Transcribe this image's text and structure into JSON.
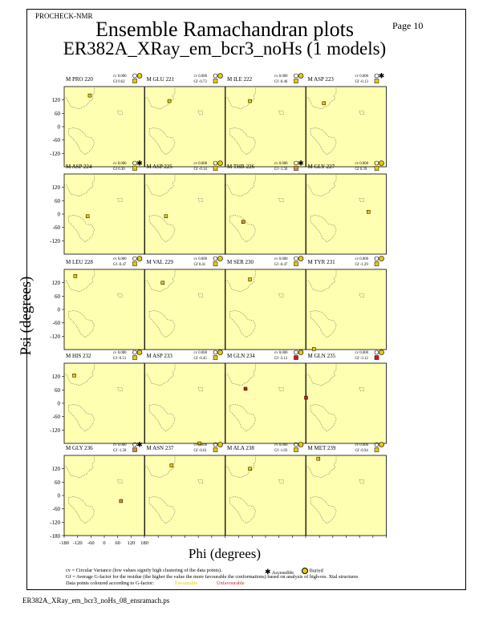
{
  "header": {
    "program": "PROCHECK-NMR",
    "page": "Page 10",
    "title": "Ensemble Ramachandran plots",
    "subtitle": "ER382A_XRay_em_bcr3_noHs (1 models)"
  },
  "axes": {
    "xlabel": "Phi (degrees)",
    "ylabel": "Psi (degrees)",
    "xticks": [
      "-180",
      "-120",
      "-60",
      "0",
      "60",
      "120",
      "180"
    ],
    "yticks": [
      "120",
      "60",
      "0",
      "-60",
      "-120"
    ],
    "ytick_bottom": "-180"
  },
  "chart_data": {
    "type": "scatter",
    "xlabel": "Phi (degrees)",
    "ylabel": "Psi (degrees)",
    "xlim": [
      -180,
      180
    ],
    "ylim": [
      -180,
      180
    ],
    "panels": [
      {
        "label": "M PRO 220",
        "cv": "cv 0.000",
        "gf": "Gf 0.62",
        "marker": "buried",
        "quality": "favourable",
        "phi": -65,
        "psi": 140
      },
      {
        "label": "M GLU 221",
        "cv": "cv 0.000",
        "gf": "Gf -0.73",
        "marker": "buried",
        "quality": "favourable",
        "phi": -70,
        "psi": 115
      },
      {
        "label": "M ILE 222",
        "cv": "cv 0.000",
        "gf": "Gf -0.46",
        "marker": "buried",
        "quality": "favourable",
        "phi": -70,
        "psi": 115
      },
      {
        "label": "M ASP 223",
        "cv": "cv 0.000",
        "gf": "Gf -0.13",
        "marker": "accessible",
        "quality": "favourable",
        "phi": -100,
        "psi": 105
      },
      {
        "label": "M ASP 224",
        "cv": "cv 0.000",
        "gf": "Gf 0.30",
        "marker": "accessible",
        "quality": "favourable",
        "phi": -75,
        "psi": -10
      },
      {
        "label": "M ASP 225",
        "cv": "cv 0.000",
        "gf": "Gf -0.14",
        "marker": "buried",
        "quality": "favourable",
        "phi": -85,
        "psi": -10
      },
      {
        "label": "M THR 226",
        "cv": "cv 0.000",
        "gf": "Gf -1.56",
        "marker": "accessible",
        "quality": "unfavourable",
        "phi": -100,
        "psi": -35
      },
      {
        "label": "M GLY 227",
        "cv": "cv 0.000",
        "gf": "Gf 0.39",
        "marker": "buried",
        "quality": "favourable",
        "phi": 100,
        "psi": 10
      },
      {
        "label": "M LEU 228",
        "cv": "cv 0.000",
        "gf": "Gf -0.47",
        "marker": "buried",
        "quality": "favourable",
        "phi": -130,
        "psi": 150
      },
      {
        "label": "M VAL 229",
        "cv": "cv 0.000",
        "gf": "Gf 0.41",
        "marker": "buried",
        "quality": "favourable",
        "phi": -100,
        "psi": 120
      },
      {
        "label": "M SER 230",
        "cv": "cv 0.000",
        "gf": "Gf -0.47",
        "marker": "buried",
        "quality": "favourable",
        "phi": -70,
        "psi": 135
      },
      {
        "label": "M TYR 231",
        "cv": "cv 0.000",
        "gf": "Gf -1.29",
        "marker": "buried",
        "quality": "favourable",
        "phi": -145,
        "psi": -178
      },
      {
        "label": "M HIS 232",
        "cv": "cv 0.000",
        "gf": "Gf -0.51",
        "marker": "buried",
        "quality": "favourable",
        "phi": -135,
        "psi": 125
      },
      {
        "label": "M ASP 233",
        "cv": "cv 0.000",
        "gf": "Gf -0.45",
        "marker": "buried",
        "quality": "favourable",
        "phi": 65,
        "psi": -180
      },
      {
        "label": "M GLN 234",
        "cv": "cv 0.000",
        "gf": "Gf -3.12",
        "marker": "buried",
        "quality": "unfavourable",
        "phi": -90,
        "psi": 65
      },
      {
        "label": "M GLN 235",
        "cv": "cv 0.000",
        "gf": "Gf -3.12",
        "marker": "buried",
        "quality": "unfavourable",
        "phi": -180,
        "psi": 25
      },
      {
        "label": "M GLY 236",
        "cv": "cv 0.000",
        "gf": "Gf -1.58",
        "marker": "accessible",
        "quality": "unfavourable",
        "phi": 75,
        "psi": -25
      },
      {
        "label": "M ASN 237",
        "cv": "cv 0.000",
        "gf": "Gf -0.61",
        "marker": "buried",
        "quality": "favourable",
        "phi": -60,
        "psi": 135
      },
      {
        "label": "M ALA 238",
        "cv": "cv 0.000",
        "gf": "Gf -1.03",
        "marker": "buried",
        "quality": "favourable",
        "phi": -70,
        "psi": 120
      },
      {
        "label": "M MET 239",
        "cv": "cv 0.000",
        "gf": "Gf -0.94",
        "marker": "buried",
        "quality": "favourable",
        "phi": -125,
        "psi": 165
      }
    ],
    "grid": false
  },
  "legend": {
    "cv_note": "cv = Circular Variance (low values signify high clustering of the data points).",
    "accessible": "Accessible",
    "buried": "Buried",
    "gf_note": "Gf = Average G-factor for the residue (the higher the value the more favourable the conformations) based on analysis of high-res. Xtal structures",
    "colour_note": "Data points coloured according to G-factor:",
    "favourable": "Favourable",
    "unfavourable": "Unfavourable"
  },
  "footer": {
    "filename": "ER382A_XRay_em_bcr3_noHs_08_ensramach.ps"
  },
  "colors": {
    "panel_bg": "#ffffb2",
    "favourable": "#e6c800",
    "intermediate": "#d98c2e",
    "unfavourable": "#c81e1e"
  }
}
